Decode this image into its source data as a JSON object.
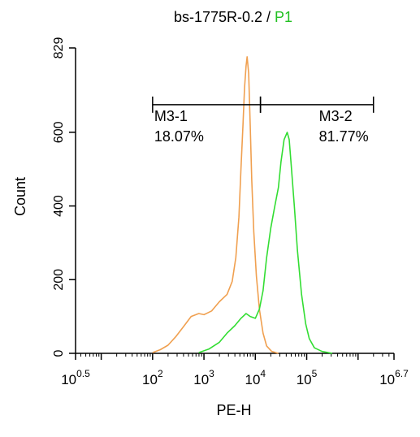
{
  "chart_data": {
    "type": "line",
    "title_parts": [
      {
        "text": "bs-1775R-0.2 / ",
        "color": "#000000"
      },
      {
        "text": "P1",
        "color": "#22c022"
      }
    ],
    "xlabel": "PE-H",
    "ylabel": "Count",
    "x_scale": "log",
    "xlim_exponent": [
      0.5,
      6.7
    ],
    "ylim": [
      0,
      829
    ],
    "x_ticks": [
      {
        "base": "10",
        "exp": "0.5",
        "value": 0.5
      },
      {
        "base": "10",
        "exp": "2",
        "value": 2
      },
      {
        "base": "10",
        "exp": "3",
        "value": 3
      },
      {
        "base": "10",
        "exp": "4",
        "value": 4
      },
      {
        "base": "10",
        "exp": "5",
        "value": 5
      },
      {
        "base": "10",
        "exp": "6.7",
        "value": 6.7
      }
    ],
    "y_ticks": [
      "0",
      "200",
      "400",
      "600",
      "829"
    ],
    "y_tick_values": [
      0,
      200,
      400,
      600,
      829
    ],
    "series": [
      {
        "color": "#f0a050",
        "points": [
          [
            2.0,
            2
          ],
          [
            2.15,
            10
          ],
          [
            2.3,
            22
          ],
          [
            2.45,
            45
          ],
          [
            2.6,
            72
          ],
          [
            2.75,
            100
          ],
          [
            2.9,
            108
          ],
          [
            3.0,
            105
          ],
          [
            3.15,
            115
          ],
          [
            3.3,
            140
          ],
          [
            3.45,
            160
          ],
          [
            3.55,
            195
          ],
          [
            3.62,
            260
          ],
          [
            3.68,
            370
          ],
          [
            3.72,
            500
          ],
          [
            3.76,
            620
          ],
          [
            3.79,
            720
          ],
          [
            3.82,
            780
          ],
          [
            3.84,
            805
          ],
          [
            3.87,
            760
          ],
          [
            3.9,
            620
          ],
          [
            3.93,
            470
          ],
          [
            3.97,
            330
          ],
          [
            4.02,
            210
          ],
          [
            4.08,
            120
          ],
          [
            4.15,
            55
          ],
          [
            4.22,
            20
          ],
          [
            4.32,
            5
          ],
          [
            4.45,
            0
          ]
        ]
      },
      {
        "color": "#33dd33",
        "points": [
          [
            2.9,
            2
          ],
          [
            3.1,
            12
          ],
          [
            3.3,
            30
          ],
          [
            3.45,
            55
          ],
          [
            3.6,
            75
          ],
          [
            3.72,
            95
          ],
          [
            3.82,
            108
          ],
          [
            3.9,
            100
          ],
          [
            4.0,
            95
          ],
          [
            4.08,
            120
          ],
          [
            4.15,
            170
          ],
          [
            4.22,
            260
          ],
          [
            4.3,
            340
          ],
          [
            4.38,
            400
          ],
          [
            4.45,
            450
          ],
          [
            4.5,
            520
          ],
          [
            4.56,
            580
          ],
          [
            4.62,
            600
          ],
          [
            4.66,
            580
          ],
          [
            4.7,
            510
          ],
          [
            4.76,
            400
          ],
          [
            4.82,
            280
          ],
          [
            4.9,
            160
          ],
          [
            4.98,
            80
          ],
          [
            5.05,
            40
          ],
          [
            5.15,
            15
          ],
          [
            5.3,
            5
          ],
          [
            5.5,
            0
          ]
        ]
      }
    ],
    "gates": [
      {
        "name": "M3-1",
        "percent": "18.07%",
        "from": 2.0,
        "to": 4.1
      },
      {
        "name": "M3-2",
        "percent": "81.77%",
        "from": 4.1,
        "to": 6.3
      }
    ],
    "gate_y": 675
  }
}
